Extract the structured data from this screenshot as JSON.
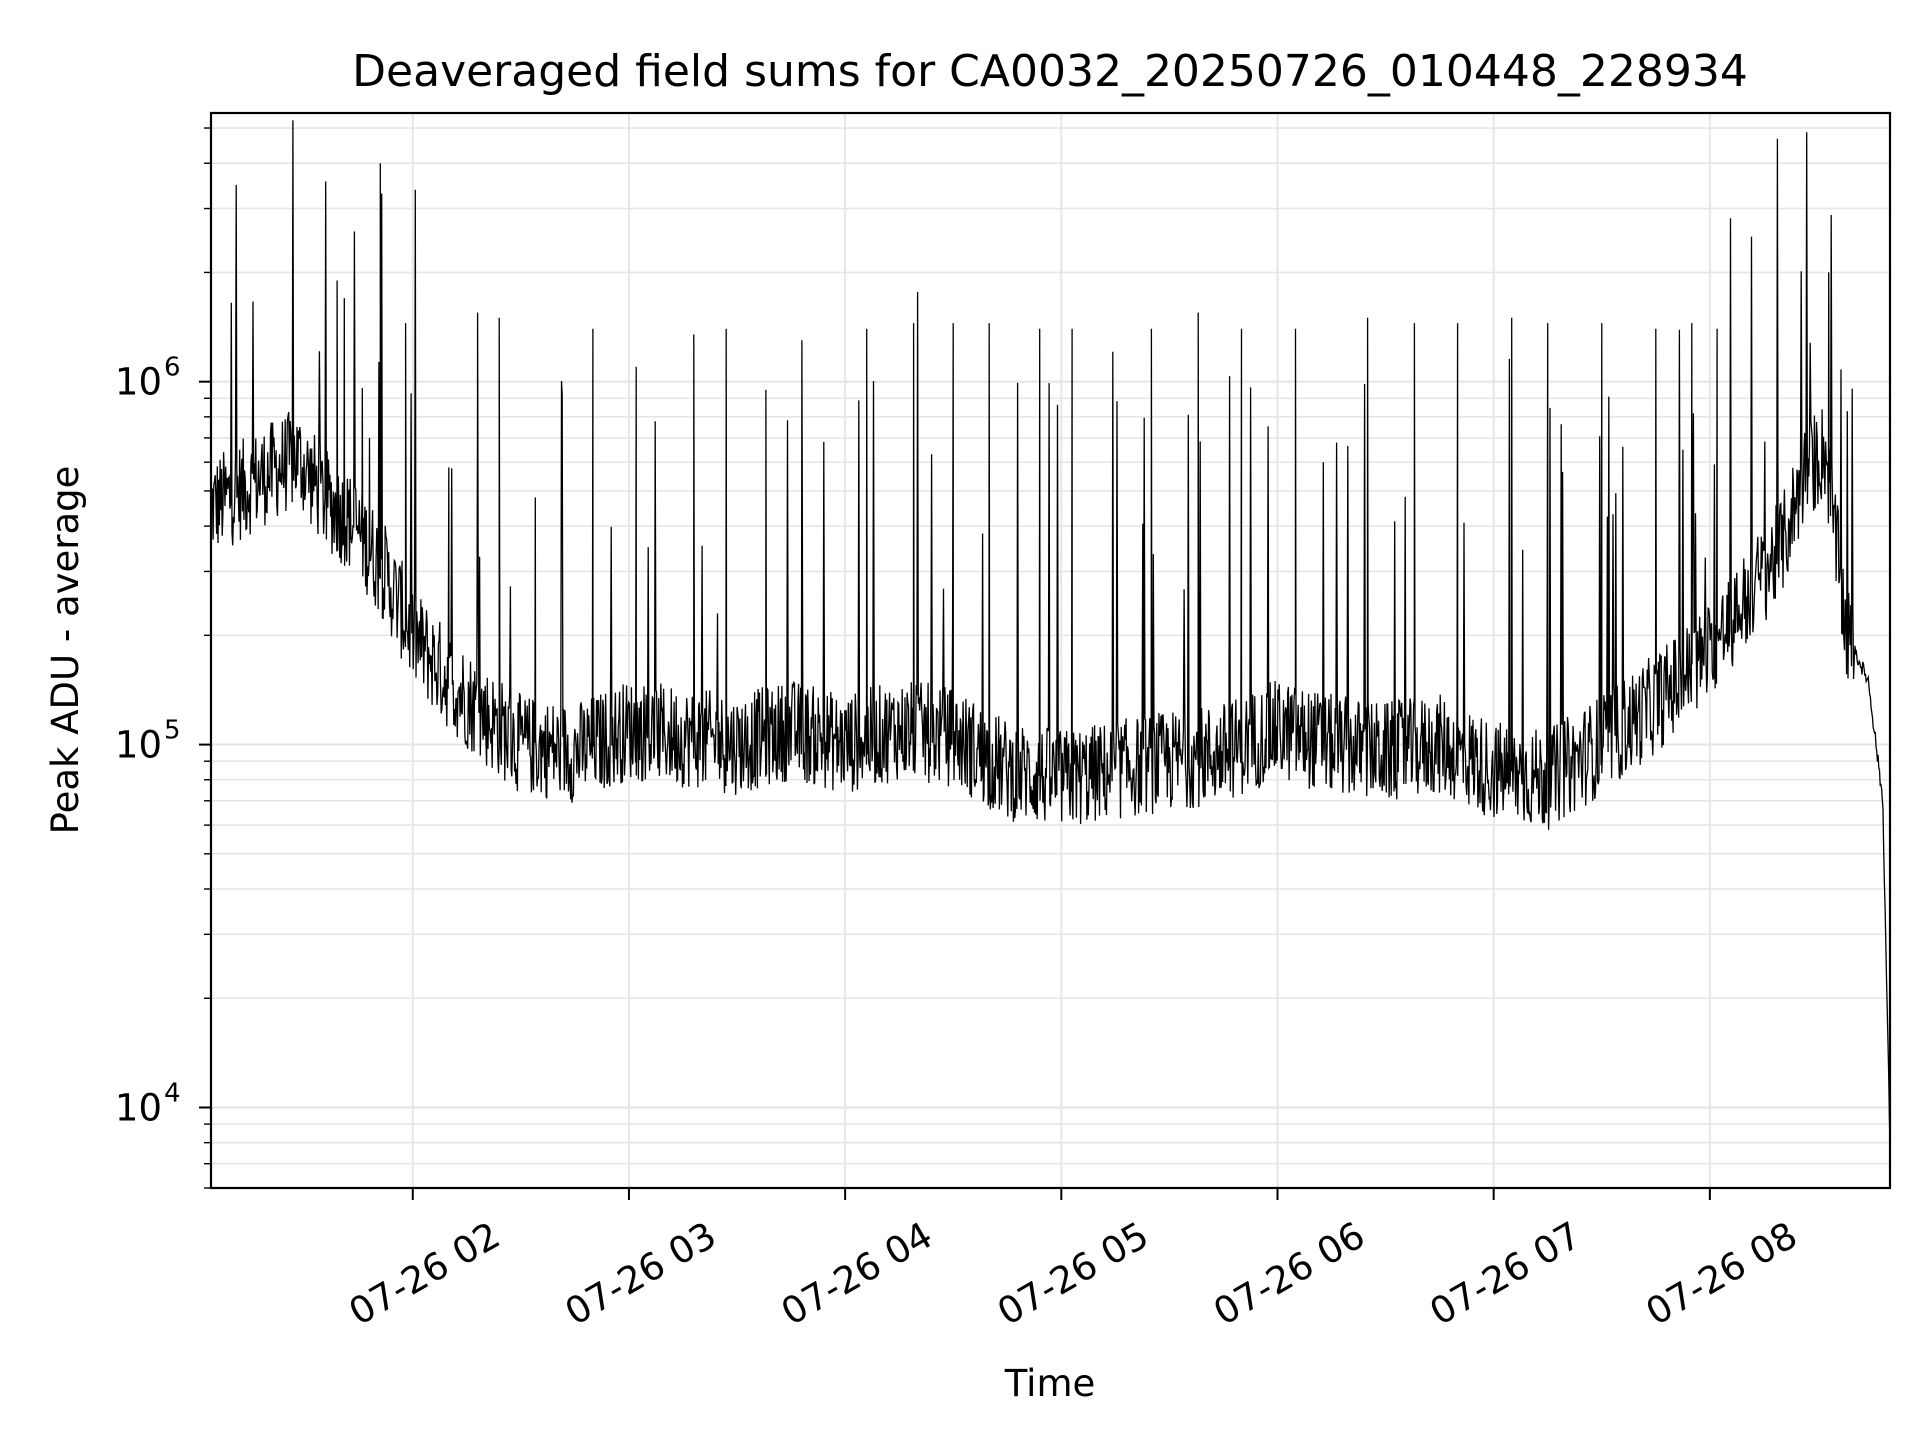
{
  "chart_data": {
    "type": "line",
    "title": "Deaveraged field sums for CA0032_20250726_010448_228934",
    "xlabel": "Time",
    "ylabel": "Peak ADU - average",
    "y_scale": "log",
    "ylim": [
      6000,
      5500000
    ],
    "xlim": [
      "2025-07-26T01:04",
      "2025-07-26T08:50"
    ],
    "x_ticks": [
      {
        "value": "2025-07-26T02:00",
        "label": "07-26 02"
      },
      {
        "value": "2025-07-26T03:00",
        "label": "07-26 03"
      },
      {
        "value": "2025-07-26T04:00",
        "label": "07-26 04"
      },
      {
        "value": "2025-07-26T05:00",
        "label": "07-26 05"
      },
      {
        "value": "2025-07-26T06:00",
        "label": "07-26 06"
      },
      {
        "value": "2025-07-26T07:00",
        "label": "07-26 07"
      },
      {
        "value": "2025-07-26T08:00",
        "label": "07-26 08"
      }
    ],
    "y_ticks": [
      {
        "value": 10000,
        "base": "10",
        "exp": "4"
      },
      {
        "value": 100000,
        "base": "10",
        "exp": "5"
      },
      {
        "value": 1000000,
        "base": "10",
        "exp": "6"
      }
    ],
    "grid": true,
    "line_color": "#000000",
    "grid_color": "#e6e6e6",
    "series": [
      {
        "x": [
          "2025-07-26T01:04",
          "2025-07-26T01:12",
          "2025-07-26T01:20",
          "2025-07-26T01:28",
          "2025-07-26T01:36",
          "2025-07-26T01:44",
          "2025-07-26T01:52",
          "2025-07-26T02:00",
          "2025-07-26T02:10",
          "2025-07-26T02:20",
          "2025-07-26T02:30",
          "2025-07-26T02:45",
          "2025-07-26T03:00",
          "2025-07-26T03:15",
          "2025-07-26T03:30",
          "2025-07-26T03:45",
          "2025-07-26T04:00",
          "2025-07-26T04:15",
          "2025-07-26T04:30",
          "2025-07-26T04:45",
          "2025-07-26T05:00",
          "2025-07-26T05:15",
          "2025-07-26T05:30",
          "2025-07-26T05:45",
          "2025-07-26T06:00",
          "2025-07-26T06:15",
          "2025-07-26T06:30",
          "2025-07-26T06:45",
          "2025-07-26T07:00",
          "2025-07-26T07:15",
          "2025-07-26T07:30",
          "2025-07-26T07:45",
          "2025-07-26T08:00",
          "2025-07-26T08:10",
          "2025-07-26T08:20",
          "2025-07-26T08:26",
          "2025-07-26T08:32",
          "2025-07-26T08:38",
          "2025-07-26T08:44",
          "2025-07-26T08:48",
          "2025-07-26T08:50"
        ],
        "values": [
          450000,
          500000,
          560000,
          620000,
          470000,
          400000,
          300000,
          200000,
          150000,
          120000,
          100000,
          95000,
          110000,
          105000,
          100000,
          110000,
          100000,
          110000,
          105000,
          85000,
          80000,
          85000,
          90000,
          95000,
          110000,
          100000,
          95000,
          100000,
          85000,
          80000,
          100000,
          130000,
          180000,
          250000,
          350000,
          550000,
          650000,
          200000,
          150000,
          70000,
          8000
        ]
      }
    ],
    "spikes": [
      {
        "x": "2025-07-26T01:39",
        "value": 1900000
      },
      {
        "x": "2025-07-26T01:41",
        "value": 1700000
      },
      {
        "x": "2025-07-26T01:46",
        "value": 960000
      },
      {
        "x": "2025-07-26T01:48",
        "value": 700000
      },
      {
        "x": "2025-07-26T01:51",
        "value": 4000000
      },
      {
        "x": "2025-07-26T01:58",
        "value": 1450000
      },
      {
        "x": "2025-07-26T02:10",
        "value": 580000
      },
      {
        "x": "2025-07-26T02:18",
        "value": 1550000
      },
      {
        "x": "2025-07-26T02:24",
        "value": 1500000
      },
      {
        "x": "2025-07-26T02:34",
        "value": 480000
      },
      {
        "x": "2025-07-26T02:50",
        "value": 1400000
      },
      {
        "x": "2025-07-26T03:02",
        "value": 1100000
      },
      {
        "x": "2025-07-26T03:18",
        "value": 1350000
      },
      {
        "x": "2025-07-26T03:27",
        "value": 1400000
      },
      {
        "x": "2025-07-26T03:38",
        "value": 950000
      },
      {
        "x": "2025-07-26T03:48",
        "value": 1300000
      },
      {
        "x": "2025-07-26T04:06",
        "value": 1400000
      },
      {
        "x": "2025-07-26T04:19",
        "value": 1450000
      },
      {
        "x": "2025-07-26T04:30",
        "value": 1450000
      },
      {
        "x": "2025-07-26T04:40",
        "value": 1450000
      },
      {
        "x": "2025-07-26T04:54",
        "value": 1400000
      },
      {
        "x": "2025-07-26T05:03",
        "value": 1400000
      },
      {
        "x": "2025-07-26T05:25",
        "value": 1400000
      },
      {
        "x": "2025-07-26T05:38",
        "value": 1550000
      },
      {
        "x": "2025-07-26T05:50",
        "value": 1400000
      },
      {
        "x": "2025-07-26T06:05",
        "value": 1400000
      },
      {
        "x": "2025-07-26T06:25",
        "value": 1500000
      },
      {
        "x": "2025-07-26T06:38",
        "value": 1450000
      },
      {
        "x": "2025-07-26T06:50",
        "value": 1450000
      },
      {
        "x": "2025-07-26T07:05",
        "value": 1500000
      },
      {
        "x": "2025-07-26T07:15",
        "value": 1450000
      },
      {
        "x": "2025-07-26T07:30",
        "value": 1450000
      },
      {
        "x": "2025-07-26T07:45",
        "value": 1400000
      },
      {
        "x": "2025-07-26T07:55",
        "value": 1450000
      },
      {
        "x": "2025-07-26T08:02",
        "value": 1400000
      },
      {
        "x": "2025-07-26T08:33",
        "value": 2000000
      }
    ]
  }
}
